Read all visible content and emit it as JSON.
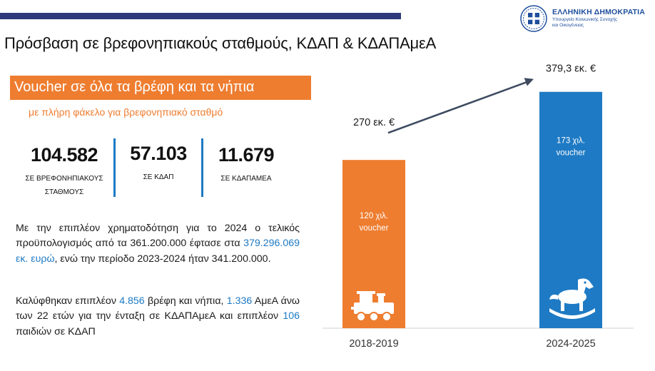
{
  "header": {
    "gov_name": "ΕΛΛΗΝΙΚΗ ΔΗΜΟΚΡΑΤΙΑ",
    "ministry_line1": "Υπουργείο Κοινωνικής Συνοχής",
    "ministry_line2": "και Οικογένειας"
  },
  "page_title": "Πρόσβαση σε βρεφονηπιακούς σταθμούς, ΚΔΑΠ & ΚΔΑΠΑμεΑ",
  "banner": {
    "title": "Voucher σε όλα τα βρέφη και τα νήπια",
    "subtitle": "με πλήρη φάκελο για βρεφονηπιακό σταθμό"
  },
  "stats": [
    {
      "value": "104.582",
      "label_line1": "ΣΕ ΒΡΕΦΟΝΗΠΙΑΚΟΥΣ",
      "label_line2": "ΣΤΑΘΜΟΥΣ"
    },
    {
      "value": "57.103",
      "label_line1": "ΣΕ ΚΔΑΠ",
      "label_line2": ""
    },
    {
      "value": "11.679",
      "label_line1": "ΣΕ ΚΔΑΠΑμεΑ",
      "label_line2": ""
    }
  ],
  "paragraph1": {
    "part1": "Με την επιπλέον χρηματοδότηση για το 2024 ο τελικός προϋπολογισμός από τα 361.200.000 έφτασε στα ",
    "highlight": "379.296.069 εκ. ευρώ",
    "part2": ", ενώ την περίοδο 2023-2024 ήταν 341.200.000."
  },
  "paragraph2": {
    "t1": "Καλύφθηκαν επιπλέον ",
    "n1": "4.856",
    "t2": " βρέφη και νήπια, ",
    "n2": "1.336",
    "t3": " ΑμεΑ άνω των 22 ετών για την ένταξη σε ΚΔΑΠΑμεΑ και επιπλέον ",
    "n3": "106",
    "t4": " παιδιών σε ΚΔΑΠ"
  },
  "colors": {
    "orange": "#ee7d30",
    "blue": "#1e7ac4",
    "navy": "#2e3a7b",
    "arrow": "#3d4a60"
  },
  "chart_data": {
    "type": "bar",
    "categories": [
      "2018-2019",
      "2024-2025"
    ],
    "values": [
      270,
      379.3
    ],
    "value_labels": [
      "270 εκ. €",
      "379,3 εκ. €"
    ],
    "inner_labels": [
      {
        "line1": "120 χιλ.",
        "line2": "voucher"
      },
      {
        "line1": "173 χιλ.",
        "line2": "voucher"
      }
    ],
    "bar_colors": [
      "#ee7d30",
      "#1e7ac4"
    ],
    "icons": [
      "train-toy-icon",
      "rocking-horse-icon"
    ],
    "ylim": [
      0,
      395
    ],
    "grid": false,
    "trend_arrow": true
  }
}
